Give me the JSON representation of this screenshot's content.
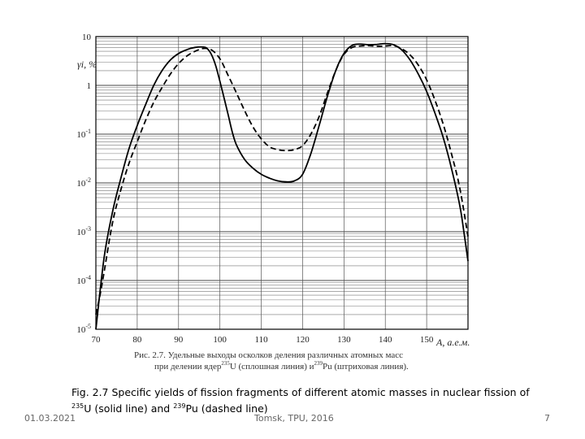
{
  "chart_data": {
    "type": "line",
    "yscale": "log",
    "xlim": [
      70,
      160
    ],
    "ylim": [
      1e-05,
      10
    ],
    "grid": true,
    "ylabel": "γi, %",
    "xlabel": "A, а.е.м.",
    "x_ticks": [
      "70",
      "80",
      "90",
      "100",
      "110",
      "120",
      "130",
      "140",
      "150"
    ],
    "y_ticks": [
      "10",
      "1",
      "10-1",
      "10-2",
      "10-3",
      "10-4",
      "10-5"
    ],
    "series": [
      {
        "style": "solid",
        "points": [
          [
            70,
            1e-05
          ],
          [
            72,
            0.0003
          ],
          [
            74,
            0.0025
          ],
          [
            76,
            0.012
          ],
          [
            78,
            0.05
          ],
          [
            80,
            0.15
          ],
          [
            82,
            0.4
          ],
          [
            84,
            1.0
          ],
          [
            86,
            2.0
          ],
          [
            88,
            3.3
          ],
          [
            90,
            4.5
          ],
          [
            92,
            5.4
          ],
          [
            94,
            6.0
          ],
          [
            96,
            6.1
          ],
          [
            97,
            5.6
          ],
          [
            98,
            4.2
          ],
          [
            99,
            2.5
          ],
          [
            100,
            1.2
          ],
          [
            101,
            0.55
          ],
          [
            102,
            0.25
          ],
          [
            103,
            0.11
          ],
          [
            104,
            0.06
          ],
          [
            106,
            0.03
          ],
          [
            108,
            0.02
          ],
          [
            110,
            0.015
          ],
          [
            112,
            0.0125
          ],
          [
            114,
            0.011
          ],
          [
            116,
            0.0105
          ],
          [
            118,
            0.011
          ],
          [
            120,
            0.015
          ],
          [
            122,
            0.04
          ],
          [
            124,
            0.15
          ],
          [
            126,
            0.6
          ],
          [
            128,
            2.0
          ],
          [
            130,
            4.5
          ],
          [
            132,
            6.6
          ],
          [
            134,
            7.0
          ],
          [
            136,
            6.8
          ],
          [
            138,
            6.9
          ],
          [
            140,
            7.2
          ],
          [
            142,
            6.8
          ],
          [
            144,
            5.3
          ],
          [
            146,
            3.3
          ],
          [
            148,
            1.7
          ],
          [
            150,
            0.75
          ],
          [
            152,
            0.27
          ],
          [
            154,
            0.085
          ],
          [
            156,
            0.02
          ],
          [
            158,
            0.0035
          ],
          [
            159,
            0.001
          ],
          [
            160,
            0.00025
          ]
        ]
      },
      {
        "style": "dashed",
        "points": [
          [
            70,
            2e-05
          ],
          [
            71,
            5e-05
          ],
          [
            72,
            0.00015
          ],
          [
            74,
            0.0015
          ],
          [
            76,
            0.007
          ],
          [
            78,
            0.025
          ],
          [
            80,
            0.07
          ],
          [
            82,
            0.19
          ],
          [
            84,
            0.45
          ],
          [
            86,
            0.9
          ],
          [
            88,
            1.7
          ],
          [
            90,
            2.8
          ],
          [
            92,
            4.0
          ],
          [
            94,
            5.0
          ],
          [
            96,
            5.7
          ],
          [
            98,
            5.3
          ],
          [
            100,
            3.5
          ],
          [
            102,
            1.6
          ],
          [
            104,
            0.7
          ],
          [
            106,
            0.3
          ],
          [
            108,
            0.14
          ],
          [
            110,
            0.08
          ],
          [
            112,
            0.055
          ],
          [
            114,
            0.048
          ],
          [
            116,
            0.046
          ],
          [
            118,
            0.048
          ],
          [
            120,
            0.058
          ],
          [
            122,
            0.1
          ],
          [
            124,
            0.23
          ],
          [
            126,
            0.7
          ],
          [
            128,
            2.0
          ],
          [
            130,
            4.3
          ],
          [
            132,
            6.0
          ],
          [
            134,
            6.4
          ],
          [
            136,
            6.5
          ],
          [
            138,
            6.3
          ],
          [
            140,
            6.4
          ],
          [
            142,
            6.5
          ],
          [
            144,
            5.6
          ],
          [
            146,
            4.2
          ],
          [
            148,
            2.6
          ],
          [
            150,
            1.3
          ],
          [
            152,
            0.5
          ],
          [
            154,
            0.16
          ],
          [
            156,
            0.04
          ],
          [
            158,
            0.008
          ],
          [
            160,
            0.0008
          ]
        ]
      }
    ]
  },
  "ru_caption": {
    "line1": "Рис. 2.7. Удельные выходы осколков деления различных атомных масс",
    "line2_a": "при делении ядер",
    "line2_sup1": "235",
    "line2_b": "U  (сплошная линия) и",
    "line2_sup2": "239",
    "line2_c": "Pu (штриховая линия)."
  },
  "caption": {
    "part1": "Fig. 2.7 Specific yields of fission fragments of different atomic masses in nuclear fission of",
    "sup1": "235",
    "part2": "U (solid line) and",
    "sup2": "239",
    "part3": "Pu (dashed line)"
  },
  "footer": {
    "date": "01.03.2021",
    "center": "Tomsk, TPU, 2016",
    "page": "7"
  }
}
